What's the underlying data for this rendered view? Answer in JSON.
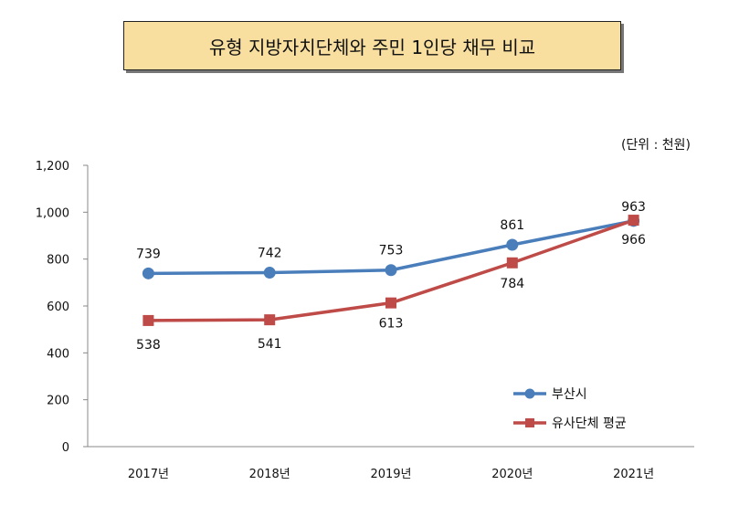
{
  "colors": {
    "busan": "#4a7ebb",
    "similar": "#be4b48",
    "title_bg": "#f8dfa0"
  },
  "chart_data": {
    "type": "line",
    "title": "유형 지방자치단체와 주민 1인당 채무 비교",
    "unit_label": "(단위 : 천원)",
    "categories": [
      "2017년",
      "2018년",
      "2019년",
      "2020년",
      "2021년"
    ],
    "ylim": [
      0,
      1200
    ],
    "yticks": [
      "0",
      "200",
      "400",
      "600",
      "800",
      "1,000",
      "1,200"
    ],
    "ytick_values": [
      0,
      200,
      400,
      600,
      800,
      1000,
      1200
    ],
    "legend_position": "bottom-right",
    "series": [
      {
        "name": "부산시",
        "values": [
          739,
          742,
          753,
          861,
          963
        ],
        "labels": [
          "739",
          "742",
          "753",
          "861",
          "963"
        ],
        "marker": "circle"
      },
      {
        "name": "유사단체 평균",
        "values": [
          538,
          541,
          613,
          784,
          966
        ],
        "labels": [
          "538",
          "541",
          "613",
          "784",
          "966"
        ],
        "marker": "square"
      }
    ]
  }
}
